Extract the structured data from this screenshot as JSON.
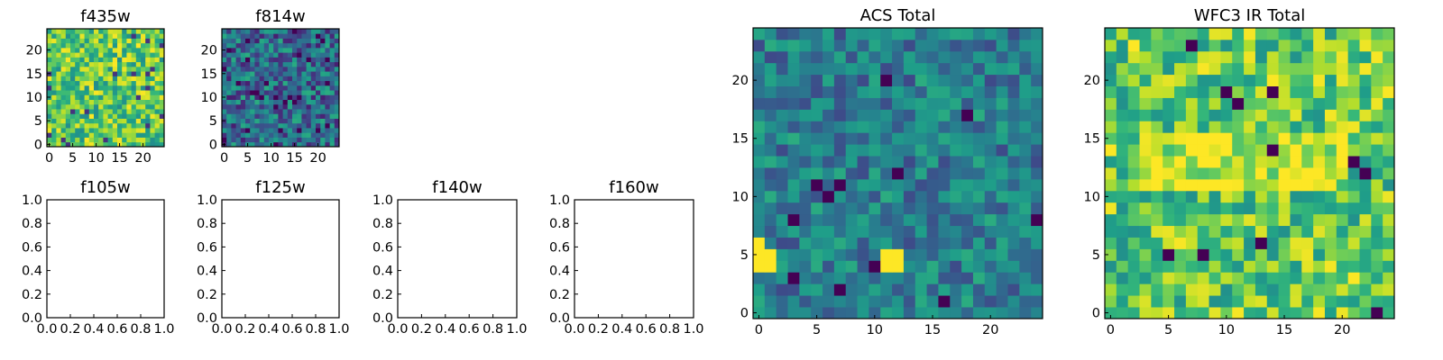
{
  "chart_data": [
    {
      "type": "heatmap",
      "title": "f435w",
      "size": [
        25,
        25
      ],
      "xticks": [
        "0",
        "5",
        "10",
        "15",
        "20"
      ],
      "yticks": [
        "0",
        "5",
        "10",
        "15",
        "20"
      ],
      "colormap": "viridis",
      "value_range": [
        0.48,
        1.0
      ],
      "values_description": "25x25 random pixel intensities, mostly high (yellow-green)"
    },
    {
      "type": "heatmap",
      "title": "f814w",
      "size": [
        25,
        25
      ],
      "xticks": [
        "0",
        "5",
        "10",
        "15",
        "20"
      ],
      "yticks": [
        "0",
        "5",
        "10",
        "15",
        "20"
      ],
      "colormap": "viridis",
      "value_range": [
        0.08,
        0.62
      ],
      "values_description": "25x25 random pixel intensities, mostly low (blue-teal)"
    },
    {
      "type": "empty",
      "title": "f105w",
      "xticks": [
        "0.0",
        "0.2",
        "0.4",
        "0.6",
        "0.8",
        "1.0"
      ],
      "yticks": [
        "0.0",
        "0.2",
        "0.4",
        "0.6",
        "0.8",
        "1.0"
      ]
    },
    {
      "type": "empty",
      "title": "f125w",
      "xticks": [
        "0.0",
        "0.2",
        "0.4",
        "0.6",
        "0.8",
        "1.0"
      ],
      "yticks": [
        "0.0",
        "0.2",
        "0.4",
        "0.6",
        "0.8",
        "1.0"
      ]
    },
    {
      "type": "empty",
      "title": "f140w",
      "xticks": [
        "0.0",
        "0.2",
        "0.4",
        "0.6",
        "0.8",
        "1.0"
      ],
      "yticks": [
        "0.0",
        "0.2",
        "0.4",
        "0.6",
        "0.8",
        "1.0"
      ]
    },
    {
      "type": "empty",
      "title": "f160w",
      "xticks": [
        "0.0",
        "0.2",
        "0.4",
        "0.6",
        "0.8",
        "1.0"
      ],
      "yticks": [
        "0.0",
        "0.2",
        "0.4",
        "0.6",
        "0.8",
        "1.0"
      ]
    },
    {
      "type": "heatmap",
      "title": "ACS Total",
      "size": [
        25,
        25
      ],
      "xticks": [
        "0",
        "5",
        "10",
        "15",
        "20"
      ],
      "yticks": [
        "0",
        "5",
        "10",
        "15",
        "20"
      ],
      "colormap": "viridis",
      "value_range": [
        0.22,
        0.62
      ],
      "bright_pixels": [
        [
          0,
          4
        ],
        [
          0,
          5
        ],
        [
          1,
          4
        ],
        [
          1,
          5
        ],
        [
          0,
          6
        ],
        [
          11,
          4
        ],
        [
          11,
          5
        ],
        [
          12,
          4
        ],
        [
          12,
          5
        ]
      ],
      "dark_pixels": [
        [
          18,
          17
        ],
        [
          5,
          11
        ],
        [
          7,
          11
        ],
        [
          6,
          10
        ],
        [
          3,
          3
        ],
        [
          12,
          12
        ],
        [
          3,
          8
        ],
        [
          10,
          4
        ],
        [
          16,
          1
        ],
        [
          24,
          8
        ],
        [
          11,
          20
        ],
        [
          7,
          2
        ]
      ],
      "values_description": "25x25 pixel sum of f435w and f814w, mostly teal-green"
    },
    {
      "type": "heatmap",
      "title": "WFC3 IR Total",
      "size": [
        25,
        25
      ],
      "xticks": [
        "0",
        "5",
        "10",
        "15",
        "20"
      ],
      "yticks": [
        "0",
        "5",
        "10",
        "15",
        "20"
      ],
      "colormap": "viridis",
      "value_range": [
        0.5,
        1.0
      ],
      "dark_pixels": [
        [
          7,
          23
        ],
        [
          11,
          18
        ],
        [
          10,
          19
        ],
        [
          14,
          14
        ],
        [
          21,
          13
        ],
        [
          22,
          12
        ],
        [
          8,
          5
        ],
        [
          13,
          6
        ],
        [
          5,
          5
        ],
        [
          23,
          0
        ],
        [
          14,
          19
        ]
      ],
      "values_description": "25x25 pixel intensities, mostly green-yellow with a bright horizontal band near y=12"
    }
  ]
}
